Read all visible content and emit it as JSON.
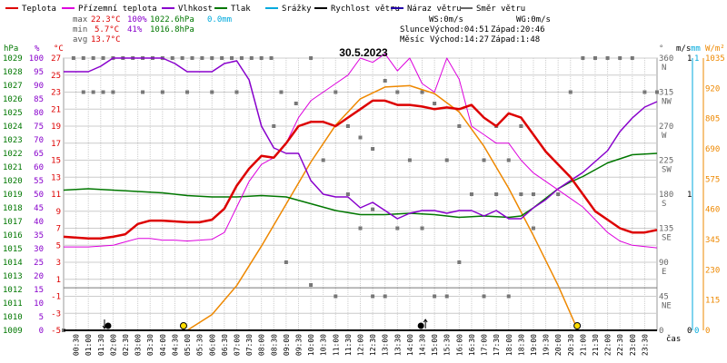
{
  "legend": [
    {
      "label": "Teplota",
      "color": "#dd0000"
    },
    {
      "label": "Přízemní teplota",
      "color": "#dd00dd"
    },
    {
      "label": "Vlhkost",
      "color": "#8800cc"
    },
    {
      "label": "Tlak",
      "color": "#007700"
    },
    {
      "label": "Srážky",
      "color": "#00aadd"
    },
    {
      "label": "Rychlost větru",
      "color": "#000000"
    },
    {
      "label": "Náraz větru",
      "color": "#2200aa"
    },
    {
      "label": "Směr větru",
      "color": "#666666"
    }
  ],
  "stats": {
    "max": {
      "label": "max",
      "temp": "22.3°C",
      "hum": "100%",
      "press": "1022.6hPa",
      "rain": "0.0mm"
    },
    "min": {
      "label": "min",
      "temp": "5.7°C",
      "hum": "41%",
      "press": "1016.8hPa"
    },
    "avg": {
      "label": "avg",
      "temp": "13.7°C"
    }
  },
  "wind_info": {
    "ws": "WS:0m/s",
    "wg": "WG:0m/s"
  },
  "sun": {
    "label": "Slunce",
    "rise": "Východ:04:51",
    "set": "Západ:20:46"
  },
  "moon": {
    "label": "Měsíc",
    "rise": "Východ:14:27",
    "set": "Západ:1:48"
  },
  "date": "30.5.2023",
  "time_label": "čas",
  "colors": {
    "temp": "#dd0000",
    "ground": "#dd00dd",
    "hum": "#8800cc",
    "press": "#007700",
    "rain": "#00aadd",
    "wind": "#000000",
    "gust": "#2200aa",
    "dir": "#666666",
    "sun": "#ee8800",
    "grid": "#cccccc"
  },
  "chart_data": {
    "type": "line",
    "date": "30.5.2023",
    "x_labels": [
      "00:30",
      "01:00",
      "01:30",
      "02:00",
      "02:30",
      "03:00",
      "03:30",
      "04:00",
      "04:30",
      "05:00",
      "05:30",
      "06:00",
      "06:30",
      "07:00",
      "07:30",
      "08:00",
      "08:30",
      "09:00",
      "09:30",
      "10:00",
      "10:30",
      "11:00",
      "11:30",
      "12:00",
      "12:30",
      "13:00",
      "13:30",
      "14:00",
      "14:30",
      "15:00",
      "15:30",
      "16:00",
      "16:30",
      "17:00",
      "17:30",
      "18:00",
      "18:30",
      "19:00",
      "19:30",
      "20:00",
      "20:30",
      "21:00",
      "21:30",
      "22:00",
      "22:30",
      "23:00",
      "23:30"
    ],
    "axes": {
      "hPa": {
        "label": "hPa",
        "ticks": [
          1029,
          1028,
          1027,
          1026,
          1025,
          1024,
          1023,
          1022,
          1021,
          1020,
          1019,
          1018,
          1017,
          1016,
          1015,
          1014,
          1013,
          1012,
          1011,
          1010,
          1009
        ]
      },
      "pct": {
        "label": "%",
        "ticks": [
          100,
          95,
          90,
          85,
          80,
          75,
          70,
          65,
          60,
          55,
          50,
          45,
          40,
          35,
          30,
          25,
          20,
          15,
          10,
          5,
          0
        ]
      },
      "temp": {
        "label": "°C",
        "ticks": [
          27,
          25,
          23,
          21,
          19,
          17,
          15,
          13,
          11,
          9,
          7,
          5,
          3,
          1,
          -1,
          -3,
          -5
        ]
      },
      "deg": {
        "label": "°",
        "ticks": [
          360,
          315,
          270,
          225,
          180,
          135,
          90,
          45,
          0
        ]
      },
      "dir": {
        "ticks": [
          "N",
          "NW",
          "W",
          "SW",
          "S",
          "SE",
          "E",
          "NE"
        ]
      },
      "ms": {
        "label": "m/s",
        "ticks": [
          "1",
          "0"
        ]
      },
      "mm": {
        "label": "mm",
        "ticks": [
          "1",
          "0"
        ]
      },
      "wm2": {
        "label": "W/m²",
        "ticks": [
          1035,
          920,
          805,
          690,
          575,
          460,
          345,
          230,
          115,
          0
        ]
      }
    },
    "series": [
      {
        "name": "Teplota",
        "unit": "°C",
        "points": [
          [
            0,
            6
          ],
          [
            1,
            5.8
          ],
          [
            1.5,
            5.8
          ],
          [
            2,
            6
          ],
          [
            2.5,
            6.3
          ],
          [
            3,
            7.5
          ],
          [
            3.5,
            7.9
          ],
          [
            4,
            7.9
          ],
          [
            4.5,
            7.8
          ],
          [
            5,
            7.7
          ],
          [
            5.5,
            7.7
          ],
          [
            6,
            8
          ],
          [
            6.5,
            9.3
          ],
          [
            7,
            12
          ],
          [
            7.5,
            14
          ],
          [
            8,
            15.5
          ],
          [
            8.5,
            15.3
          ],
          [
            9,
            17
          ],
          [
            9.5,
            19
          ],
          [
            10,
            19.5
          ],
          [
            10.5,
            19.5
          ],
          [
            11,
            19
          ],
          [
            11.5,
            20
          ],
          [
            12,
            21
          ],
          [
            12.5,
            22
          ],
          [
            13,
            22
          ],
          [
            13.5,
            21.5
          ],
          [
            14,
            21.5
          ],
          [
            14.5,
            21.3
          ],
          [
            15,
            21
          ],
          [
            15.5,
            21.2
          ],
          [
            16,
            21
          ],
          [
            16.5,
            21.5
          ],
          [
            17,
            20
          ],
          [
            17.5,
            19
          ],
          [
            18,
            20.5
          ],
          [
            18.5,
            20
          ],
          [
            19,
            18
          ],
          [
            19.5,
            16
          ],
          [
            20,
            14.5
          ],
          [
            20.5,
            13
          ],
          [
            21,
            11
          ],
          [
            21.5,
            9
          ],
          [
            22,
            8
          ],
          [
            22.5,
            7
          ],
          [
            23,
            6.5
          ],
          [
            23.5,
            6.5
          ],
          [
            24,
            6.8
          ]
        ]
      },
      {
        "name": "Přízemní teplota",
        "unit": "°C",
        "points": [
          [
            0,
            4.8
          ],
          [
            1,
            4.8
          ],
          [
            2,
            5
          ],
          [
            2.5,
            5.4
          ],
          [
            3,
            5.8
          ],
          [
            3.5,
            5.8
          ],
          [
            4,
            5.6
          ],
          [
            4.5,
            5.6
          ],
          [
            5,
            5.5
          ],
          [
            5.5,
            5.6
          ],
          [
            6,
            5.7
          ],
          [
            6.5,
            6.5
          ],
          [
            7,
            9.5
          ],
          [
            7.5,
            12.5
          ],
          [
            8,
            14.5
          ],
          [
            8.5,
            15.3
          ],
          [
            9,
            17
          ],
          [
            9.5,
            20
          ],
          [
            10,
            22
          ],
          [
            10.5,
            23
          ],
          [
            11,
            24
          ],
          [
            11.5,
            25
          ],
          [
            12,
            27
          ],
          [
            12.5,
            26.5
          ],
          [
            13,
            27.5
          ],
          [
            13.5,
            25.5
          ],
          [
            14,
            27
          ],
          [
            14.5,
            24
          ],
          [
            15,
            23
          ],
          [
            15.5,
            27
          ],
          [
            16,
            24.5
          ],
          [
            16.5,
            19
          ],
          [
            17,
            18
          ],
          [
            17.5,
            17
          ],
          [
            18,
            17
          ],
          [
            18.5,
            15
          ],
          [
            19,
            13.5
          ],
          [
            19.5,
            12.5
          ],
          [
            20,
            11.5
          ],
          [
            20.5,
            10.5
          ],
          [
            21,
            9.5
          ],
          [
            21.5,
            8
          ],
          [
            22,
            6.5
          ],
          [
            22.5,
            5.5
          ],
          [
            23,
            5
          ],
          [
            24,
            4.7
          ]
        ]
      },
      {
        "name": "Vlhkost",
        "unit": "%",
        "points": [
          [
            0,
            95
          ],
          [
            1,
            95
          ],
          [
            1.5,
            97
          ],
          [
            2,
            100
          ],
          [
            3,
            100
          ],
          [
            3.5,
            100
          ],
          [
            4,
            100
          ],
          [
            4.5,
            98
          ],
          [
            5,
            95
          ],
          [
            5.5,
            95
          ],
          [
            6,
            95
          ],
          [
            6.5,
            98
          ],
          [
            7,
            99
          ],
          [
            7.5,
            92
          ],
          [
            8,
            75
          ],
          [
            8.5,
            67
          ],
          [
            9,
            65
          ],
          [
            9.5,
            65
          ],
          [
            10,
            55
          ],
          [
            10.5,
            50
          ],
          [
            11,
            49
          ],
          [
            11.5,
            49
          ],
          [
            12,
            45
          ],
          [
            12.5,
            47
          ],
          [
            13,
            44
          ],
          [
            13.5,
            41
          ],
          [
            14,
            43
          ],
          [
            14.5,
            44
          ],
          [
            15,
            44
          ],
          [
            15.5,
            43
          ],
          [
            16,
            44
          ],
          [
            16.5,
            44
          ],
          [
            17,
            42
          ],
          [
            17.5,
            44
          ],
          [
            18,
            41
          ],
          [
            18.5,
            41
          ],
          [
            19,
            45
          ],
          [
            19.5,
            48
          ],
          [
            20,
            52
          ],
          [
            20.5,
            55
          ],
          [
            21,
            58
          ],
          [
            21.5,
            62
          ],
          [
            22,
            66
          ],
          [
            22.5,
            73
          ],
          [
            23,
            78
          ],
          [
            23.5,
            82
          ],
          [
            24,
            84
          ]
        ]
      },
      {
        "name": "Tlak",
        "unit": "hPa",
        "points": [
          [
            0,
            1019.3
          ],
          [
            1,
            1019.4
          ],
          [
            2,
            1019.3
          ],
          [
            3,
            1019.2
          ],
          [
            4,
            1019.1
          ],
          [
            5,
            1018.9
          ],
          [
            6,
            1018.8
          ],
          [
            7,
            1018.8
          ],
          [
            8,
            1018.9
          ],
          [
            9,
            1018.8
          ],
          [
            10,
            1018.3
          ],
          [
            11,
            1017.8
          ],
          [
            12,
            1017.5
          ],
          [
            13,
            1017.5
          ],
          [
            14,
            1017.6
          ],
          [
            15,
            1017.5
          ],
          [
            16,
            1017.3
          ],
          [
            17,
            1017.4
          ],
          [
            18,
            1017.3
          ],
          [
            18.5,
            1017.4
          ],
          [
            19,
            1018
          ],
          [
            19.5,
            1018.7
          ],
          [
            20,
            1019.4
          ],
          [
            20.5,
            1019.9
          ],
          [
            21,
            1020.3
          ],
          [
            21.5,
            1020.8
          ],
          [
            22,
            1021.3
          ],
          [
            22.5,
            1021.6
          ],
          [
            23,
            1021.9
          ],
          [
            24,
            1022
          ]
        ]
      },
      {
        "name": "Sluneční záření",
        "unit": "W/m²",
        "points": [
          [
            5,
            0
          ],
          [
            6,
            60
          ],
          [
            7,
            170
          ],
          [
            8,
            320
          ],
          [
            9,
            480
          ],
          [
            10,
            640
          ],
          [
            11,
            780
          ],
          [
            12,
            880
          ],
          [
            13,
            925
          ],
          [
            14,
            930
          ],
          [
            15,
            900
          ],
          [
            16,
            830
          ],
          [
            17,
            700
          ],
          [
            18,
            540
          ],
          [
            19,
            360
          ],
          [
            20,
            170
          ],
          [
            20.8,
            0
          ]
        ]
      }
    ],
    "wind_direction_deg": [
      [
        0,
        0
      ],
      [
        0.4,
        360
      ],
      [
        0.8,
        360
      ],
      [
        1.2,
        360
      ],
      [
        1.6,
        360
      ],
      [
        2,
        360
      ],
      [
        2.4,
        360
      ],
      [
        2.8,
        360
      ],
      [
        3.2,
        360
      ],
      [
        3.6,
        360
      ],
      [
        4,
        360
      ],
      [
        4.4,
        360
      ],
      [
        4.8,
        360
      ],
      [
        5.2,
        360
      ],
      [
        5.6,
        360
      ],
      [
        6,
        360
      ],
      [
        6.4,
        360
      ],
      [
        6.8,
        360
      ],
      [
        7.2,
        360
      ],
      [
        7.6,
        360
      ],
      [
        8,
        360
      ],
      [
        8.4,
        360
      ],
      [
        0.8,
        315
      ],
      [
        1.2,
        315
      ],
      [
        1.6,
        315
      ],
      [
        2,
        315
      ],
      [
        3.2,
        315
      ],
      [
        4,
        315
      ],
      [
        5,
        315
      ],
      [
        6,
        315
      ],
      [
        7,
        315
      ],
      [
        8.8,
        315
      ],
      [
        9.4,
        300
      ],
      [
        10,
        360
      ],
      [
        11,
        315
      ],
      [
        11.5,
        270
      ],
      [
        12,
        255
      ],
      [
        12.5,
        240
      ],
      [
        13,
        330
      ],
      [
        13.5,
        315
      ],
      [
        14,
        225
      ],
      [
        14.5,
        315
      ],
      [
        15,
        300
      ],
      [
        15.5,
        225
      ],
      [
        16,
        270
      ],
      [
        16.5,
        180
      ],
      [
        17,
        225
      ],
      [
        17.5,
        180
      ],
      [
        18,
        225
      ],
      [
        18.5,
        180
      ],
      [
        19,
        180
      ],
      [
        20,
        180
      ],
      [
        20.5,
        315
      ],
      [
        21,
        360
      ],
      [
        21.5,
        360
      ],
      [
        22,
        360
      ],
      [
        22.5,
        360
      ],
      [
        23,
        360
      ],
      [
        23.5,
        315
      ],
      [
        24,
        315
      ],
      [
        11,
        45
      ],
      [
        12.5,
        45
      ],
      [
        15.5,
        45
      ],
      [
        19,
        135
      ],
      [
        12,
        135
      ],
      [
        13.5,
        135
      ],
      [
        10.5,
        225
      ],
      [
        8.5,
        270
      ],
      [
        9,
        90
      ],
      [
        10,
        60
      ],
      [
        11.5,
        180
      ],
      [
        12.5,
        160
      ],
      [
        14.5,
        135
      ],
      [
        16,
        90
      ],
      [
        17,
        45
      ],
      [
        13,
        45
      ],
      [
        15,
        45
      ],
      [
        18,
        45
      ],
      [
        18.5,
        270
      ],
      [
        17.5,
        270
      ]
    ],
    "markers": [
      {
        "type": "sunrise",
        "time": 4.85
      },
      {
        "type": "sunset",
        "time": 20.77
      },
      {
        "type": "moonset",
        "time": 1.8
      },
      {
        "type": "moonrise",
        "time": 14.45
      }
    ],
    "xlabel": "čas",
    "grid": true
  }
}
